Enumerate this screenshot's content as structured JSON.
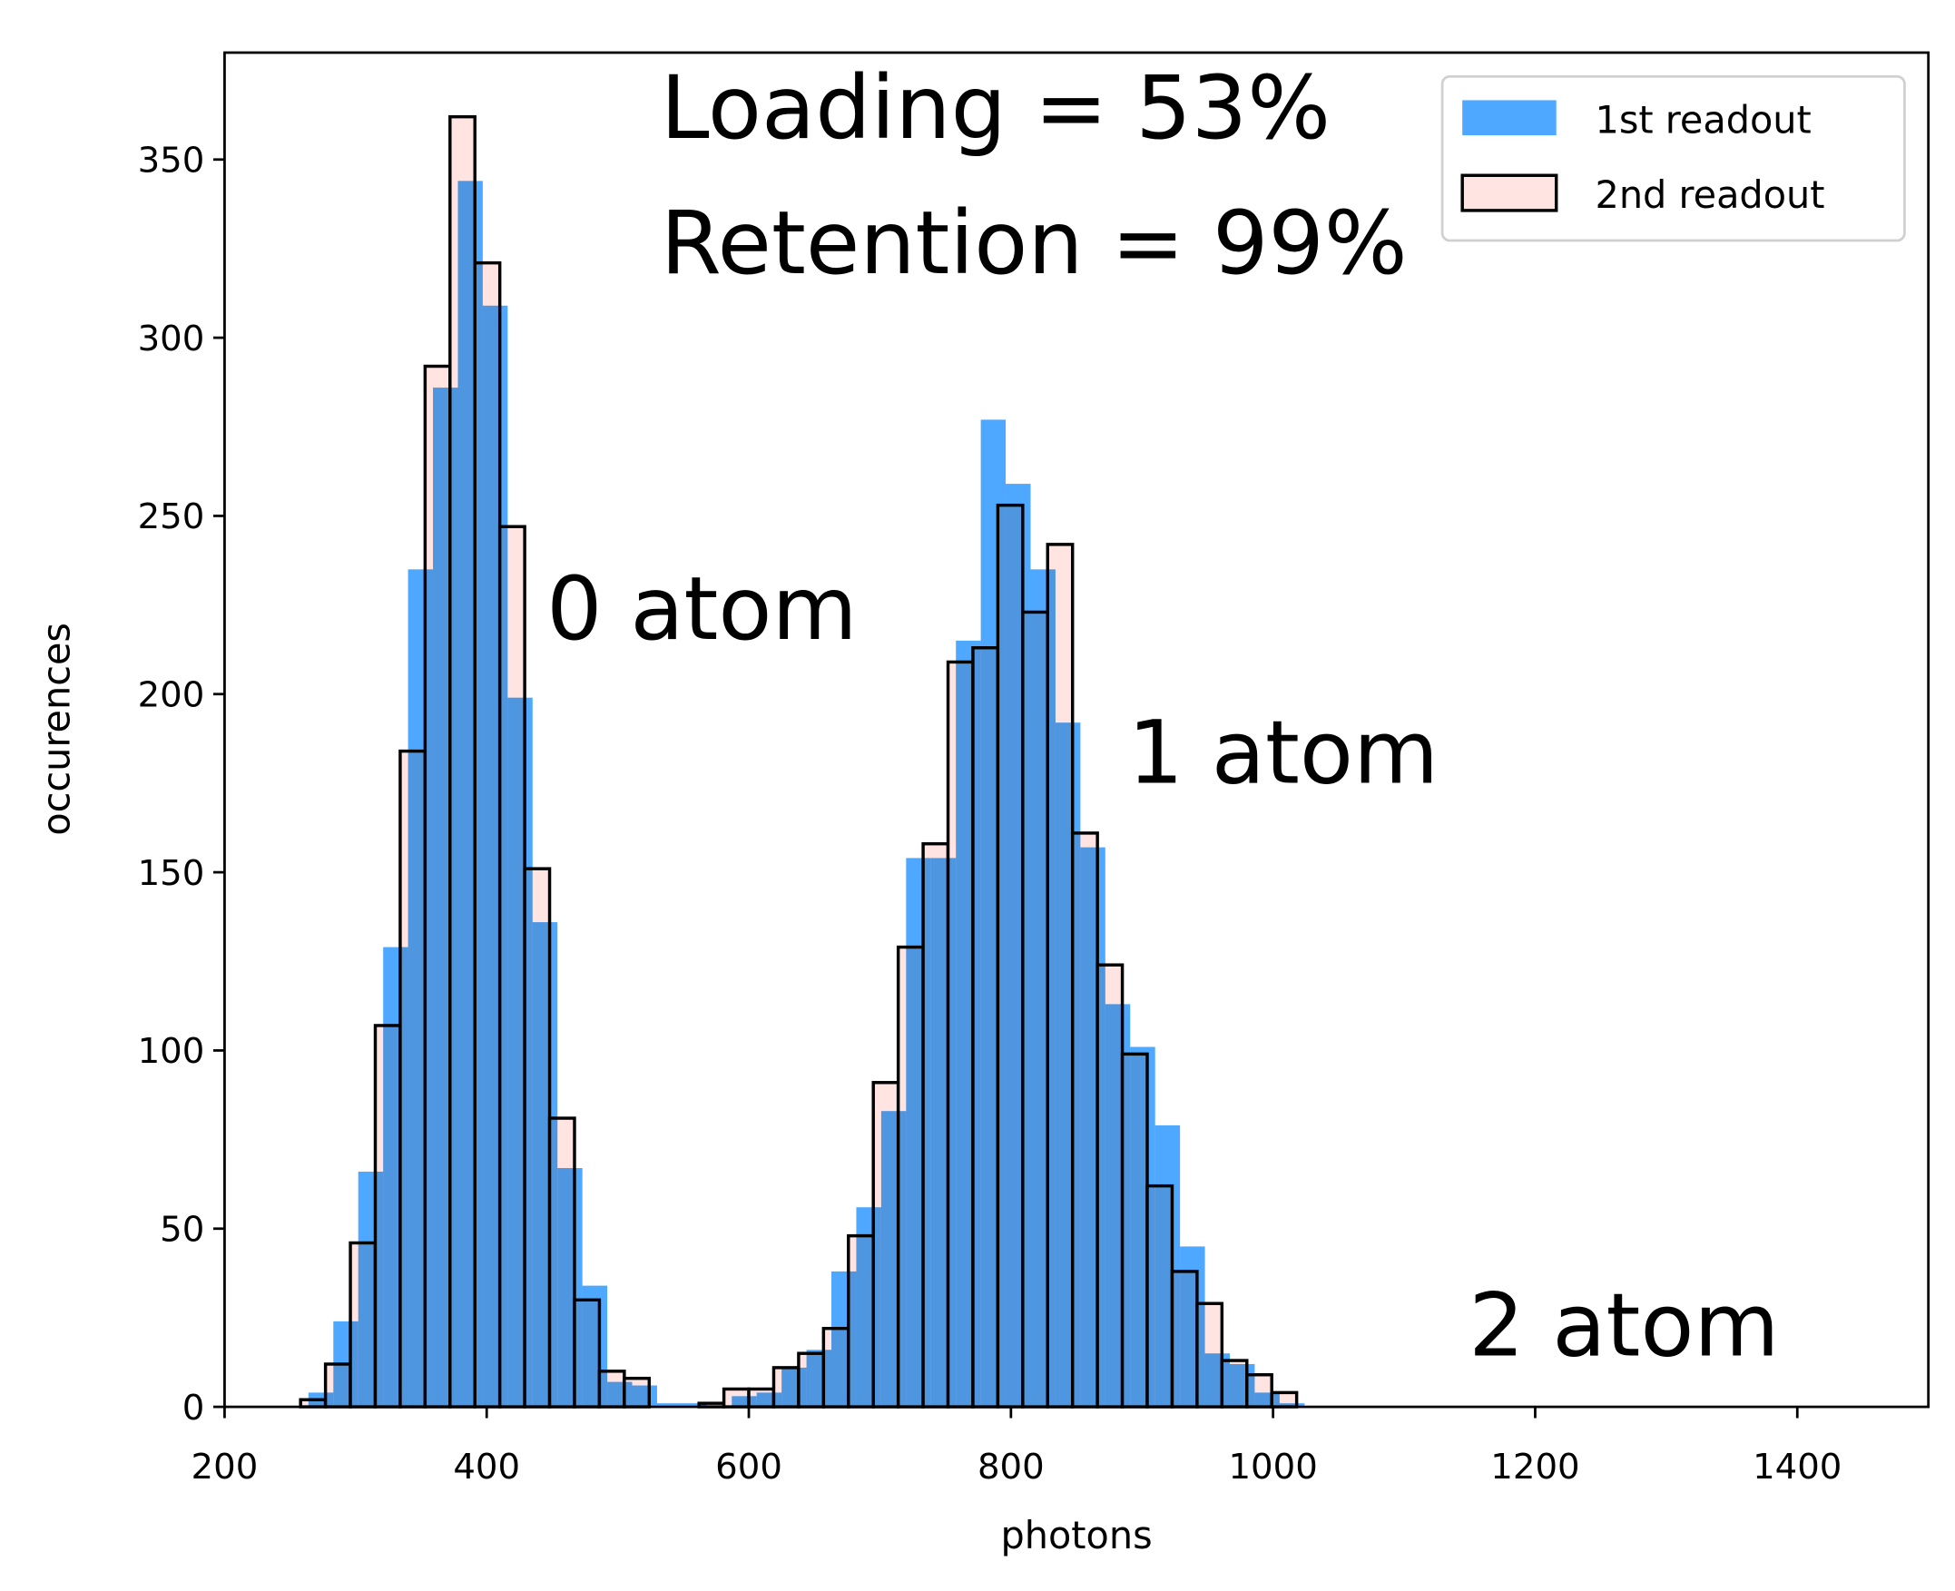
{
  "chart_data": {
    "type": "histogram",
    "xlabel": "photons",
    "ylabel": "occurences",
    "xlim": [
      200,
      1500
    ],
    "ylim": [
      0,
      380
    ],
    "xticks": [
      200,
      400,
      600,
      800,
      1000,
      1200,
      1400
    ],
    "yticks": [
      0,
      50,
      100,
      150,
      200,
      250,
      300,
      350
    ],
    "grid": false,
    "legend": "upper right",
    "annotations": [
      "Loading = 53%",
      "Retention = 99%",
      "0 atom",
      "1 atom",
      "2 atom"
    ],
    "series": [
      {
        "name": "1st readout",
        "color": "#4fa8ff",
        "bins": [
          264,
          283,
          302,
          321,
          340,
          359,
          378,
          397,
          416,
          435,
          454,
          473,
          492,
          511,
          530,
          549,
          568,
          587,
          606,
          625,
          644,
          663,
          682,
          701,
          720,
          739,
          758,
          777,
          796,
          815,
          834,
          853,
          872,
          891,
          910,
          929,
          948,
          967,
          986,
          1005,
          1024
        ],
        "values": [
          4,
          24,
          66,
          129,
          235,
          286,
          344,
          309,
          199,
          136,
          67,
          34,
          7,
          6,
          1,
          1,
          0,
          3,
          4,
          11,
          16,
          38,
          56,
          83,
          154,
          154,
          215,
          277,
          259,
          235,
          192,
          157,
          113,
          101,
          79,
          45,
          15,
          12,
          4,
          1
        ]
      },
      {
        "name": "2nd readout",
        "color": "#ffe4e1",
        "edgecolor": "#000000",
        "bins": [
          258,
          277,
          296,
          315,
          334,
          353,
          372,
          391,
          410,
          429,
          448,
          467,
          486,
          505,
          524,
          543,
          562,
          581,
          600,
          619,
          638,
          657,
          676,
          695,
          714,
          733,
          752,
          771,
          790,
          809,
          828,
          847,
          866,
          885,
          904,
          923,
          942,
          961,
          980,
          999,
          1018
        ],
        "values": [
          2,
          12,
          46,
          107,
          184,
          292,
          362,
          321,
          247,
          151,
          81,
          30,
          10,
          8,
          0,
          0,
          1,
          5,
          5,
          11,
          15,
          22,
          48,
          91,
          129,
          158,
          209,
          213,
          253,
          223,
          242,
          161,
          124,
          99,
          62,
          38,
          29,
          13,
          9,
          4
        ]
      }
    ]
  }
}
